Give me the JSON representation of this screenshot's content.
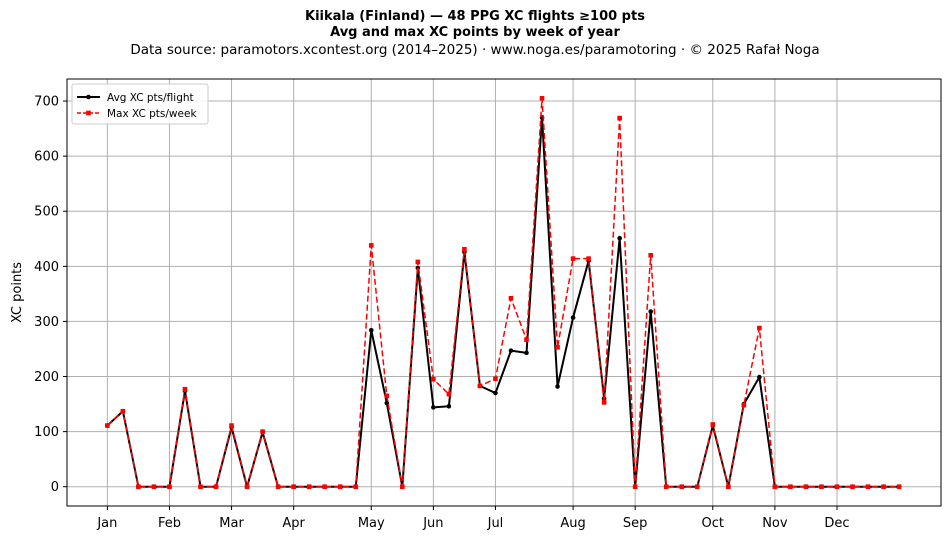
{
  "header": {
    "title": "Kiikala (Finland)  —  48 PPG XC flights ≥100 pts",
    "subtitle": "Avg and max XC points by week of year",
    "source": "Data source: paramotors.xcontest.org (2014–2025)  ·  www.noga.es/paramotoring  ·  © 2025 Rafał Noga"
  },
  "chart_data": {
    "type": "line",
    "title": "Kiikala (Finland)  —  48 PPG XC flights ≥100 pts",
    "subtitle": "Avg and max XC points by week of year",
    "xlabel": "",
    "ylabel": "XC points",
    "x": [
      1,
      2,
      3,
      4,
      5,
      6,
      7,
      8,
      9,
      10,
      11,
      12,
      13,
      14,
      15,
      16,
      17,
      18,
      19,
      20,
      21,
      22,
      23,
      24,
      25,
      26,
      27,
      28,
      29,
      30,
      31,
      32,
      33,
      34,
      35,
      36,
      37,
      38,
      39,
      40,
      41,
      42,
      43,
      44,
      45,
      46,
      47,
      48,
      49,
      50,
      51,
      52
    ],
    "xlim": [
      -1.6,
      54.7
    ],
    "ylim": [
      -35,
      740
    ],
    "yticks": [
      0,
      100,
      200,
      300,
      400,
      500,
      600,
      700
    ],
    "xticks": [
      {
        "value": 1,
        "label": "Jan"
      },
      {
        "value": 5,
        "label": "Feb"
      },
      {
        "value": 9,
        "label": "Mar"
      },
      {
        "value": 13,
        "label": "Apr"
      },
      {
        "value": 18,
        "label": "May"
      },
      {
        "value": 22,
        "label": "Jun"
      },
      {
        "value": 26,
        "label": "Jul"
      },
      {
        "value": 31,
        "label": "Aug"
      },
      {
        "value": 35,
        "label": "Sep"
      },
      {
        "value": 40,
        "label": "Oct"
      },
      {
        "value": 44,
        "label": "Nov"
      },
      {
        "value": 48,
        "label": "Dec"
      }
    ],
    "grid": true,
    "legend_position": "top-left",
    "series": [
      {
        "name": "Avg XC pts/flight",
        "color": "#000000",
        "style": "solid",
        "marker": "circle",
        "values": [
          111,
          137,
          0,
          0,
          0,
          174,
          0,
          0,
          108,
          0,
          99,
          0,
          0,
          0,
          0,
          0,
          0,
          284,
          152,
          0,
          397,
          144,
          146,
          426,
          183,
          170,
          247,
          243,
          670,
          182,
          307,
          410,
          160,
          451,
          0,
          318,
          0,
          0,
          0,
          111,
          0,
          150,
          199,
          0,
          0,
          0,
          0,
          0,
          0,
          0,
          0,
          0
        ]
      },
      {
        "name": "Max XC pts/week",
        "color": "#ff0000",
        "style": "dashed",
        "marker": "square",
        "values": [
          111,
          137,
          0,
          0,
          0,
          177,
          0,
          0,
          111,
          0,
          100,
          0,
          0,
          0,
          0,
          0,
          0,
          438,
          165,
          0,
          408,
          195,
          168,
          431,
          183,
          196,
          342,
          267,
          705,
          253,
          414,
          414,
          153,
          669,
          0,
          420,
          0,
          0,
          0,
          113,
          0,
          148,
          288,
          0,
          0,
          0,
          0,
          0,
          0,
          0,
          0,
          0
        ]
      }
    ]
  }
}
